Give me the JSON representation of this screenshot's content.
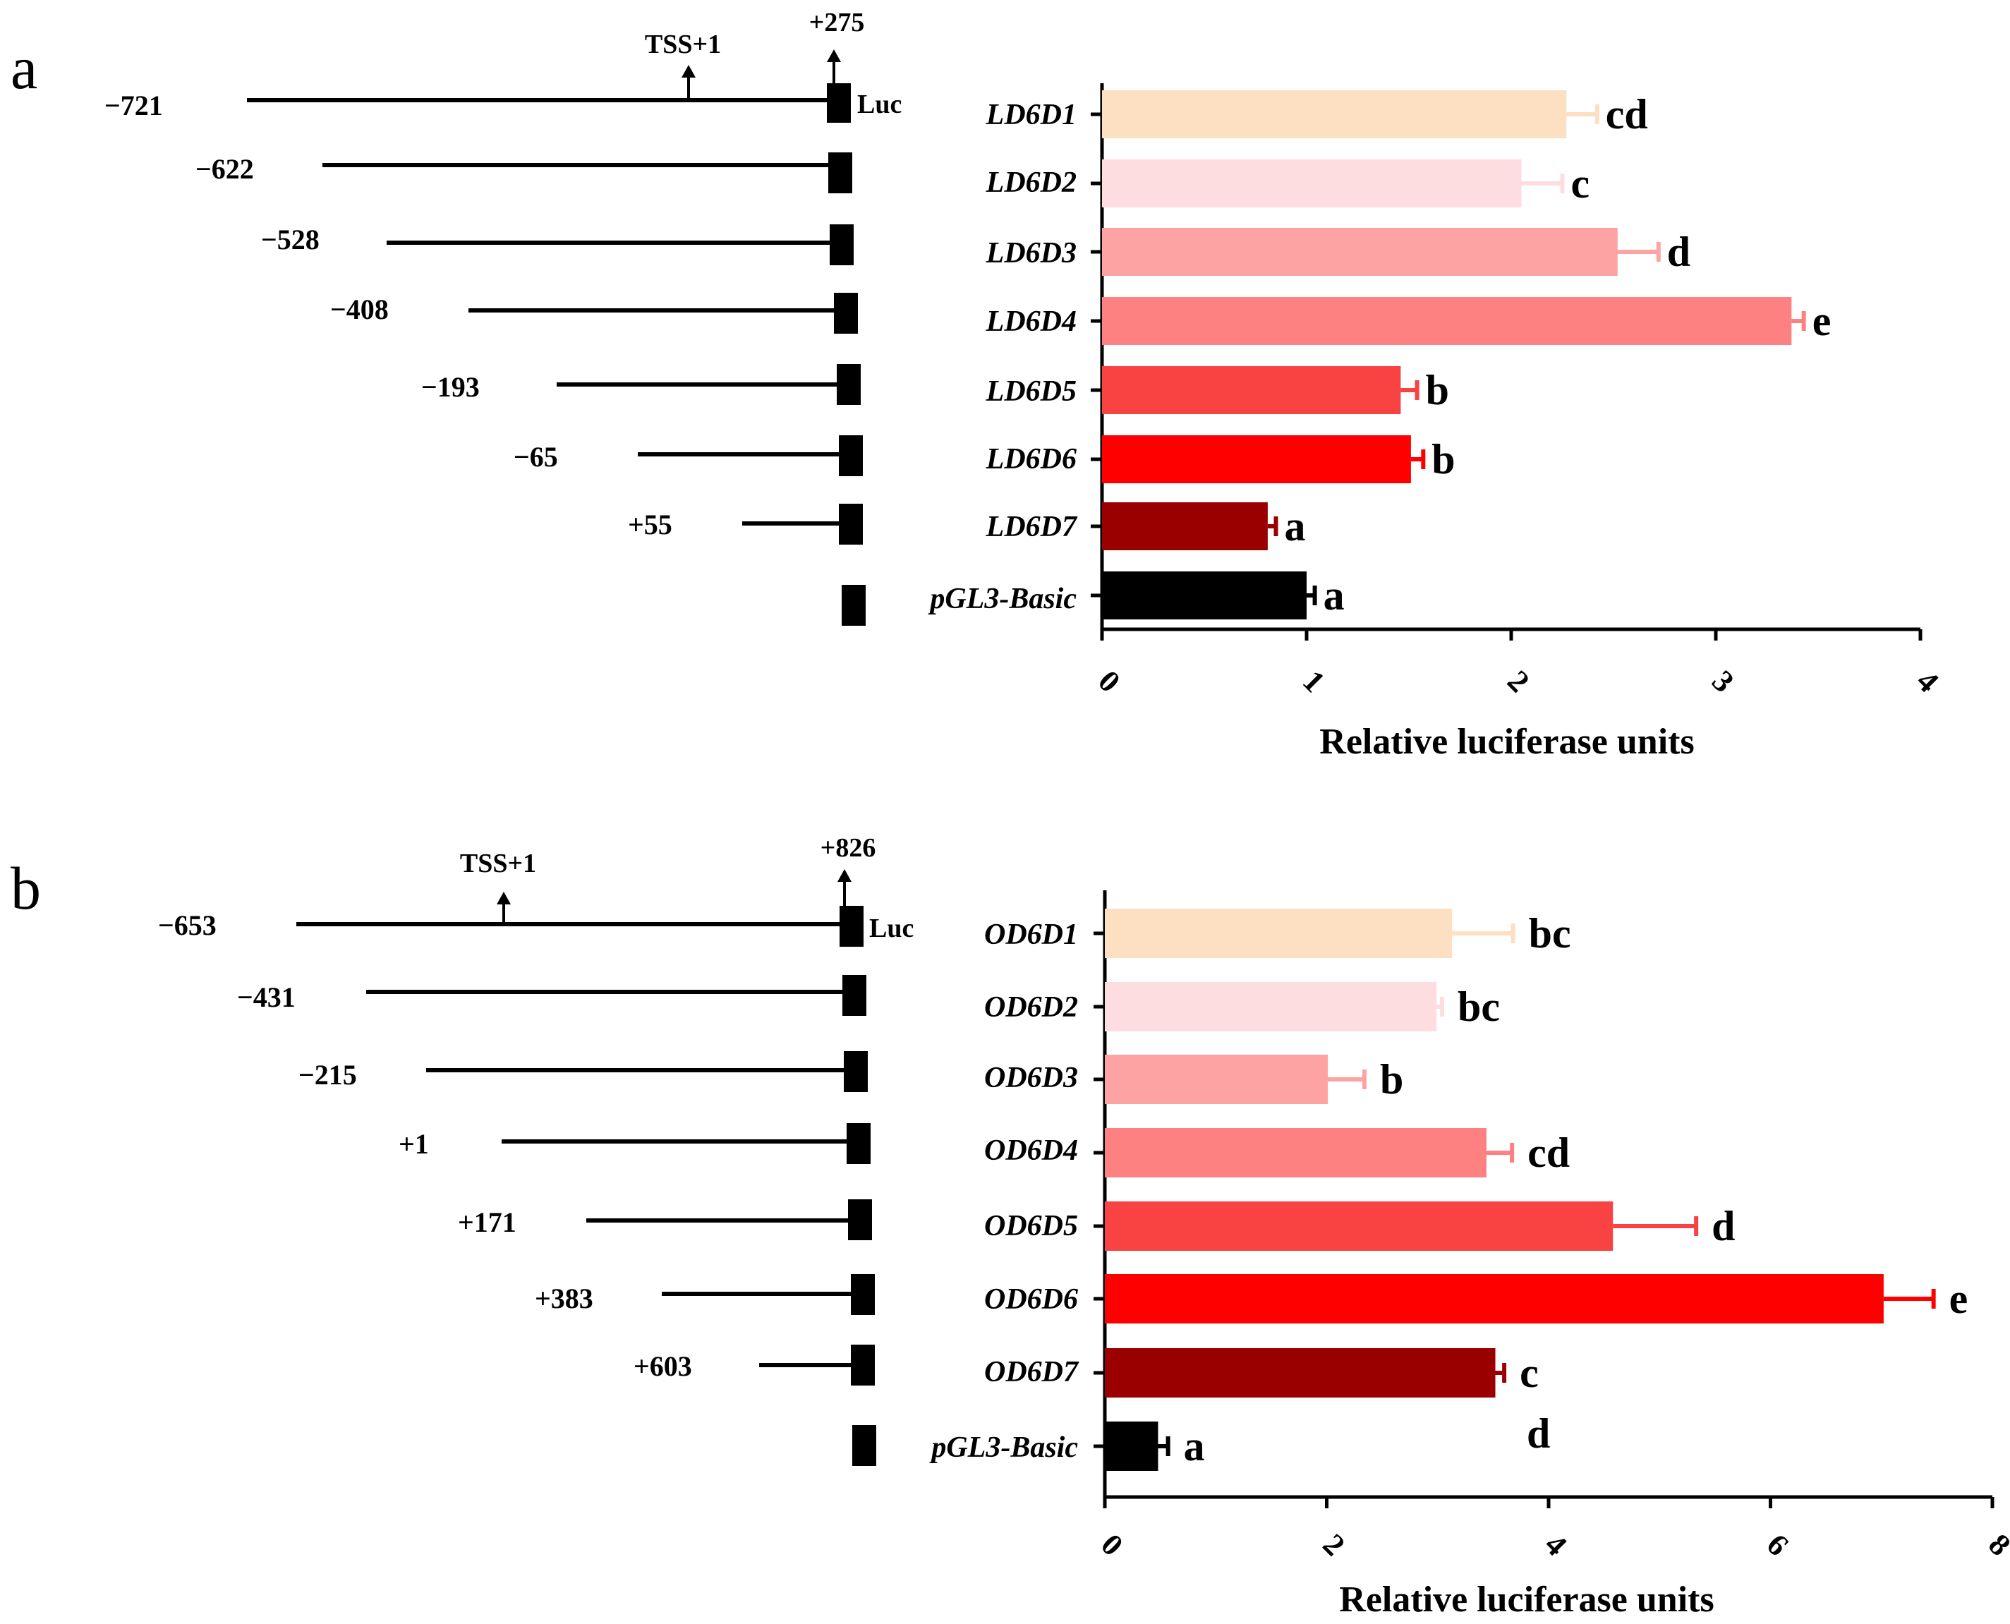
{
  "colors": [
    "#FDDFC1",
    "#FDDDE0",
    "#FDA3A3",
    "#FD8181",
    "#F94343",
    "#FF0000",
    "#9A0000",
    "#000000"
  ],
  "panels": [
    {
      "letter": "a",
      "construct": {
        "tss_label": "TSS+1",
        "end_label": "+275",
        "luc_label": "Luc",
        "positions": [
          "−721",
          "−622",
          "−528",
          "−408",
          "−193",
          "−65",
          "+55"
        ]
      }
    },
    {
      "letter": "b",
      "construct": {
        "tss_label": "TSS+1",
        "end_label": "+826",
        "luc_label": "Luc",
        "positions": [
          "−653",
          "−431",
          "−215",
          "+1",
          "+171",
          "+383",
          "+603"
        ]
      }
    }
  ],
  "chart_data": [
    {
      "type": "bar",
      "orientation": "horizontal",
      "panel": "a",
      "categories": [
        "LD6D1",
        "LD6D2",
        "LD6D3",
        "LD6D4",
        "LD6D5",
        "LD6D6",
        "LD6D7",
        "pGL3-Basic"
      ],
      "values": [
        2.27,
        2.05,
        2.52,
        3.37,
        1.46,
        1.51,
        0.81,
        1.0
      ],
      "errors": [
        0.15,
        0.2,
        0.2,
        0.06,
        0.08,
        0.06,
        0.04,
        0.04
      ],
      "significance": [
        "cd",
        "c",
        "d",
        "e",
        "b",
        "b",
        "a",
        "a"
      ],
      "xlabel": "Relative luciferase units",
      "xlim": [
        0,
        4
      ],
      "xticks": [
        "0",
        "1",
        "2",
        "3",
        "4"
      ]
    },
    {
      "type": "bar",
      "orientation": "horizontal",
      "panel": "b",
      "categories": [
        "OD6D1",
        "OD6D2",
        "OD6D3",
        "OD6D4",
        "OD6D5",
        "OD6D6",
        "OD6D7",
        "pGL3-Basic"
      ],
      "values": [
        3.13,
        2.99,
        2.01,
        3.44,
        4.58,
        7.02,
        3.52,
        0.48
      ],
      "errors": [
        0.55,
        0.05,
        0.33,
        0.23,
        0.75,
        0.45,
        0.08,
        0.09
      ],
      "significance": [
        "bc",
        "bc",
        "b",
        "cd",
        "d",
        "e",
        "c",
        "a"
      ],
      "extra_label": "d",
      "xlabel": "Relative luciferase units",
      "xlim": [
        0,
        8
      ],
      "xticks": [
        "0",
        "2",
        "4",
        "6",
        "8"
      ]
    }
  ]
}
